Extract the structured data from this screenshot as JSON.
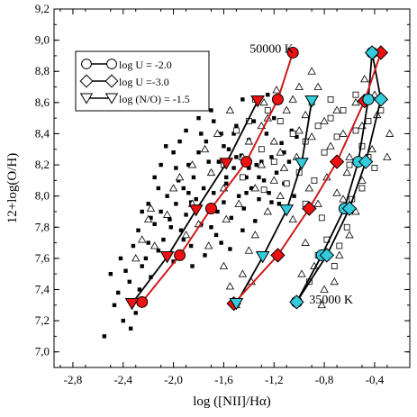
{
  "chart_data": {
    "type": "scatter",
    "xlabel": "log ([NII]/Hα)",
    "ylabel": "12+log(O/H)",
    "xlim": [
      -2.95,
      -0.12
    ],
    "ylim": [
      6.9,
      9.2
    ],
    "xticks": [
      -2.8,
      -2.4,
      -2.0,
      -1.6,
      -1.2,
      -0.8,
      -0.4
    ],
    "xtick_labels": [
      "-2,8",
      "-2,4",
      "-2,0",
      "-1,6",
      "-1,2",
      "-0,8",
      "-0,4"
    ],
    "yticks": [
      7.0,
      7.2,
      7.4,
      7.6,
      7.8,
      8.0,
      8.2,
      8.4,
      8.6,
      8.8,
      9.0,
      9.2
    ],
    "ytick_labels": [
      "7,0",
      "7,2",
      "7,4",
      "7,6",
      "7,8",
      "8,0",
      "8,2",
      "8,4",
      "8,6",
      "8,8",
      "9,0",
      "9,2"
    ],
    "annotations": [
      {
        "text": "50000 K",
        "x": -1.05,
        "y": 8.95
      },
      {
        "text": "35000 K",
        "x": -0.92,
        "y": 7.34
      }
    ],
    "legend": {
      "position": "top-left",
      "entries": [
        {
          "label": "log U = -2.0",
          "marker": "circle"
        },
        {
          "label": "log U =-3.0",
          "marker": "diamond"
        },
        {
          "label": "log (N/O) = -1.5",
          "marker": "triangle-down"
        }
      ]
    },
    "colors": {
      "red": "#ee1111",
      "cyan": "#33ccdd",
      "black": "#000000"
    },
    "model_series": [
      {
        "marker": "circle",
        "fill": "red",
        "line": "black",
        "x": [
          -2.25,
          -1.95,
          -1.7,
          -1.42,
          -1.17,
          -1.05
        ],
        "y": [
          7.32,
          7.62,
          7.92,
          8.22,
          8.62,
          8.92
        ]
      },
      {
        "marker": "triangle-down",
        "fill": "red",
        "line": "black",
        "x": [
          -2.33,
          -2.05,
          -1.82,
          -1.58,
          -1.33
        ],
        "y": [
          7.31,
          7.61,
          7.91,
          8.21,
          8.61
        ]
      },
      {
        "marker": "diamond",
        "fill": "red",
        "line": "black",
        "x": [
          -1.52,
          -1.17,
          -0.92,
          -0.7,
          -0.48,
          -0.35
        ],
        "y": [
          7.31,
          7.62,
          7.92,
          8.22,
          8.61,
          8.92
        ]
      },
      {
        "marker": "circle",
        "fill": "cyan",
        "line": "black",
        "x": [
          -1.02,
          -0.82,
          -0.64,
          -0.53,
          -0.45,
          -0.42
        ],
        "y": [
          7.32,
          7.62,
          7.92,
          8.22,
          8.62,
          8.92
        ]
      },
      {
        "marker": "diamond",
        "fill": "cyan",
        "line": "black",
        "x": [
          -1.02,
          -0.78,
          -0.6,
          -0.47,
          -0.35,
          -0.42
        ],
        "y": [
          7.32,
          7.62,
          7.92,
          8.22,
          8.62,
          8.92
        ]
      },
      {
        "marker": "triangle-down",
        "fill": "cyan",
        "line": "black",
        "x": [
          -1.5,
          -1.29,
          -1.1,
          -0.98,
          -0.9
        ],
        "y": [
          7.31,
          7.61,
          7.91,
          8.21,
          8.61
        ]
      }
    ],
    "red_model_line": {
      "x": [
        -1.52,
        -1.17,
        -0.92,
        -0.7,
        -0.48,
        -0.35
      ],
      "y": [
        7.31,
        7.62,
        7.92,
        8.22,
        8.61,
        8.92
      ]
    },
    "red_circle_line": {
      "x": [
        -2.25,
        -1.95,
        -1.7,
        -1.42,
        -1.17,
        -1.05
      ],
      "y": [
        7.32,
        7.62,
        7.92,
        8.22,
        8.62,
        8.92
      ]
    },
    "observations": {
      "filled_squares": [
        [
          -2.55,
          7.1
        ],
        [
          -2.5,
          7.5
        ],
        [
          -2.47,
          7.3
        ],
        [
          -2.44,
          7.38
        ],
        [
          -2.4,
          7.2
        ],
        [
          -2.38,
          7.52
        ],
        [
          -2.34,
          7.15
        ],
        [
          -2.3,
          7.25
        ],
        [
          -2.35,
          7.45
        ],
        [
          -2.27,
          7.4
        ],
        [
          -2.25,
          7.55
        ],
        [
          -2.22,
          7.6
        ],
        [
          -2.2,
          7.7
        ],
        [
          -2.18,
          7.48
        ],
        [
          -2.15,
          7.82
        ],
        [
          -2.12,
          7.65
        ],
        [
          -2.1,
          7.9
        ],
        [
          -2.08,
          7.72
        ],
        [
          -2.05,
          8.0
        ],
        [
          -2.03,
          7.85
        ],
        [
          -2.0,
          7.58
        ],
        [
          -1.98,
          7.95
        ],
        [
          -1.96,
          8.1
        ],
        [
          -1.94,
          7.78
        ],
        [
          -1.92,
          8.05
        ],
        [
          -1.9,
          7.88
        ],
        [
          -1.88,
          8.2
        ],
        [
          -1.86,
          7.68
        ],
        [
          -1.84,
          8.12
        ],
        [
          -1.82,
          7.98
        ],
        [
          -1.8,
          8.28
        ],
        [
          -1.78,
          7.82
        ],
        [
          -1.76,
          8.05
        ],
        [
          -1.74,
          8.35
        ],
        [
          -1.72,
          7.92
        ],
        [
          -1.7,
          8.15
        ],
        [
          -1.68,
          8.02
        ],
        [
          -1.66,
          7.75
        ],
        [
          -1.64,
          8.22
        ],
        [
          -1.62,
          8.4
        ],
        [
          -1.6,
          7.96
        ],
        [
          -1.58,
          8.08
        ],
        [
          -1.56,
          8.3
        ],
        [
          -1.54,
          7.86
        ],
        [
          -1.52,
          8.18
        ],
        [
          -1.5,
          8.45
        ],
        [
          -1.48,
          8.0
        ],
        [
          -1.46,
          8.26
        ],
        [
          -1.44,
          7.92
        ],
        [
          -1.42,
          8.12
        ],
        [
          -1.4,
          8.36
        ],
        [
          -1.38,
          8.05
        ],
        [
          -1.36,
          8.48
        ],
        [
          -1.34,
          8.2
        ],
        [
          -1.32,
          7.98
        ],
        [
          -1.3,
          8.3
        ],
        [
          -1.28,
          8.1
        ],
        [
          -1.26,
          8.4
        ],
        [
          -1.24,
          8.02
        ],
        [
          -1.22,
          8.25
        ],
        [
          -1.2,
          8.5
        ],
        [
          -1.18,
          8.15
        ],
        [
          -1.16,
          7.95
        ],
        [
          -1.14,
          8.34
        ],
        [
          -1.12,
          8.08
        ],
        [
          -1.1,
          8.55
        ],
        [
          -1.08,
          8.22
        ],
        [
          -1.06,
          8.42
        ],
        [
          -1.04,
          8.0
        ],
        [
          -2.0,
          8.28
        ],
        [
          -2.1,
          8.2
        ],
        [
          -2.2,
          7.95
        ],
        [
          -1.9,
          8.42
        ],
        [
          -1.8,
          8.5
        ],
        [
          -1.7,
          8.55
        ],
        [
          -1.95,
          8.35
        ],
        [
          -2.15,
          8.12
        ],
        [
          -2.28,
          7.78
        ],
        [
          -2.32,
          7.68
        ],
        [
          -2.42,
          7.6
        ],
        [
          -1.62,
          7.7
        ],
        [
          -1.75,
          7.62
        ],
        [
          -1.85,
          7.55
        ],
        [
          -1.55,
          7.66
        ],
        [
          -1.45,
          7.78
        ],
        [
          -1.35,
          7.84
        ],
        [
          -1.65,
          7.9
        ],
        [
          -1.58,
          8.12
        ],
        [
          -1.72,
          8.22
        ],
        [
          -1.88,
          8.02
        ],
        [
          -1.98,
          8.18
        ],
        [
          -2.06,
          8.32
        ],
        [
          -1.6,
          8.32
        ],
        [
          -1.5,
          8.25
        ],
        [
          -1.4,
          8.18
        ],
        [
          -1.3,
          8.22
        ],
        [
          -1.82,
          8.6
        ],
        [
          -1.45,
          8.62
        ],
        [
          -1.55,
          8.55
        ],
        [
          -1.25,
          8.65
        ],
        [
          -2.12,
          8.05
        ],
        [
          -2.25,
          7.9
        ],
        [
          -1.92,
          7.72
        ],
        [
          -1.7,
          7.8
        ],
        [
          -1.78,
          8.4
        ],
        [
          -1.68,
          8.48
        ],
        [
          -1.52,
          8.4
        ],
        [
          -1.42,
          8.02
        ],
        [
          -1.32,
          8.12
        ],
        [
          -1.22,
          7.96
        ],
        [
          -1.12,
          8.28
        ],
        [
          -1.02,
          8.38
        ],
        [
          -2.02,
          7.8
        ],
        [
          -2.18,
          7.86
        ],
        [
          -1.86,
          7.96
        ]
      ],
      "open_squares": [
        [
          -1.35,
          8.62
        ],
        [
          -1.25,
          8.55
        ],
        [
          -1.15,
          8.48
        ],
        [
          -1.05,
          8.4
        ],
        [
          -0.95,
          8.35
        ],
        [
          -0.9,
          8.6
        ],
        [
          -0.85,
          8.45
        ],
        [
          -0.8,
          8.28
        ],
        [
          -0.75,
          8.5
        ],
        [
          -0.7,
          8.38
        ],
        [
          -0.65,
          8.55
        ],
        [
          -0.6,
          8.2
        ],
        [
          -0.55,
          8.42
        ],
        [
          -0.5,
          8.32
        ],
        [
          -0.45,
          8.48
        ],
        [
          -0.4,
          8.18
        ],
        [
          -1.3,
          8.3
        ],
        [
          -1.2,
          8.22
        ],
        [
          -1.1,
          8.08
        ],
        [
          -1.0,
          8.15
        ],
        [
          -0.95,
          7.95
        ],
        [
          -0.88,
          8.1
        ],
        [
          -0.82,
          7.86
        ],
        [
          -0.78,
          7.72
        ],
        [
          -0.72,
          7.55
        ],
        [
          -0.68,
          7.68
        ],
        [
          -0.62,
          7.8
        ],
        [
          -0.58,
          7.98
        ],
        [
          -0.5,
          8.05
        ],
        [
          -0.45,
          8.25
        ],
        [
          -1.5,
          8.42
        ],
        [
          -1.6,
          8.2
        ],
        [
          -1.45,
          8.12
        ],
        [
          -0.85,
          7.62
        ],
        [
          -0.92,
          7.45
        ],
        [
          -0.75,
          8.62
        ],
        [
          -0.35,
          8.55
        ],
        [
          -0.55,
          8.65
        ],
        [
          -1.4,
          8.48
        ],
        [
          -1.28,
          8.04
        ]
      ],
      "open_triangles": [
        [
          -2.2,
          7.85
        ],
        [
          -2.18,
          7.92
        ],
        [
          -2.0,
          8.05
        ],
        [
          -1.9,
          7.75
        ],
        [
          -1.8,
          7.82
        ],
        [
          -1.72,
          7.68
        ],
        [
          -1.6,
          7.55
        ],
        [
          -1.55,
          7.42
        ],
        [
          -1.5,
          7.3
        ],
        [
          -1.45,
          7.5
        ],
        [
          -1.4,
          7.65
        ],
        [
          -1.35,
          7.75
        ],
        [
          -1.3,
          8.45
        ],
        [
          -1.25,
          8.5
        ],
        [
          -1.2,
          8.35
        ],
        [
          -1.15,
          8.28
        ],
        [
          -1.1,
          8.55
        ],
        [
          -1.05,
          8.62
        ],
        [
          -1.0,
          8.42
        ],
        [
          -0.95,
          8.52
        ],
        [
          -0.9,
          8.38
        ],
        [
          -0.85,
          8.7
        ],
        [
          -0.8,
          8.48
        ],
        [
          -0.75,
          8.32
        ],
        [
          -0.7,
          8.55
        ],
        [
          -0.65,
          8.4
        ],
        [
          -0.6,
          8.25
        ],
        [
          -0.55,
          8.6
        ],
        [
          -0.5,
          8.45
        ],
        [
          -0.48,
          8.75
        ],
        [
          -0.42,
          8.3
        ],
        [
          -0.38,
          8.52
        ],
        [
          -0.3,
          8.25
        ],
        [
          -0.28,
          8.4
        ],
        [
          -1.65,
          8.4
        ],
        [
          -1.55,
          8.55
        ],
        [
          -1.75,
          8.3
        ],
        [
          -1.85,
          8.2
        ],
        [
          -1.95,
          8.12
        ],
        [
          -2.05,
          7.88
        ],
        [
          -2.25,
          7.72
        ],
        [
          -1.45,
          8.25
        ],
        [
          -1.35,
          8.05
        ],
        [
          -1.25,
          7.9
        ],
        [
          -1.15,
          8.0
        ],
        [
          -1.05,
          7.85
        ],
        [
          -0.95,
          7.7
        ],
        [
          -0.88,
          7.55
        ],
        [
          -0.8,
          7.4
        ],
        [
          -0.72,
          7.45
        ],
        [
          -0.68,
          7.62
        ],
        [
          -0.6,
          7.75
        ],
        [
          -0.55,
          7.9
        ],
        [
          -0.5,
          8.1
        ],
        [
          -1.02,
          8.25
        ],
        [
          -1.12,
          8.18
        ],
        [
          -0.78,
          8.12
        ],
        [
          -0.7,
          8.02
        ],
        [
          -1.4,
          8.35
        ],
        [
          -1.3,
          8.2
        ],
        [
          -1.2,
          8.1
        ],
        [
          -0.92,
          8.05
        ],
        [
          -0.85,
          7.95
        ],
        [
          -0.62,
          8.15
        ],
        [
          -1.6,
          8.05
        ],
        [
          -1.7,
          8.15
        ],
        [
          -2.3,
          7.6
        ],
        [
          -2.15,
          7.68
        ],
        [
          -1.85,
          7.95
        ],
        [
          -1.0,
          8.7
        ],
        [
          -0.9,
          8.8
        ],
        [
          -0.4,
          8.65
        ],
        [
          -1.58,
          7.85
        ],
        [
          -1.48,
          7.95
        ],
        [
          -1.38,
          7.45
        ],
        [
          -0.98,
          7.5
        ],
        [
          -0.82,
          7.3
        ],
        [
          -0.65,
          7.98
        ],
        [
          -1.28,
          8.6
        ],
        [
          -1.18,
          8.68
        ]
      ]
    }
  }
}
